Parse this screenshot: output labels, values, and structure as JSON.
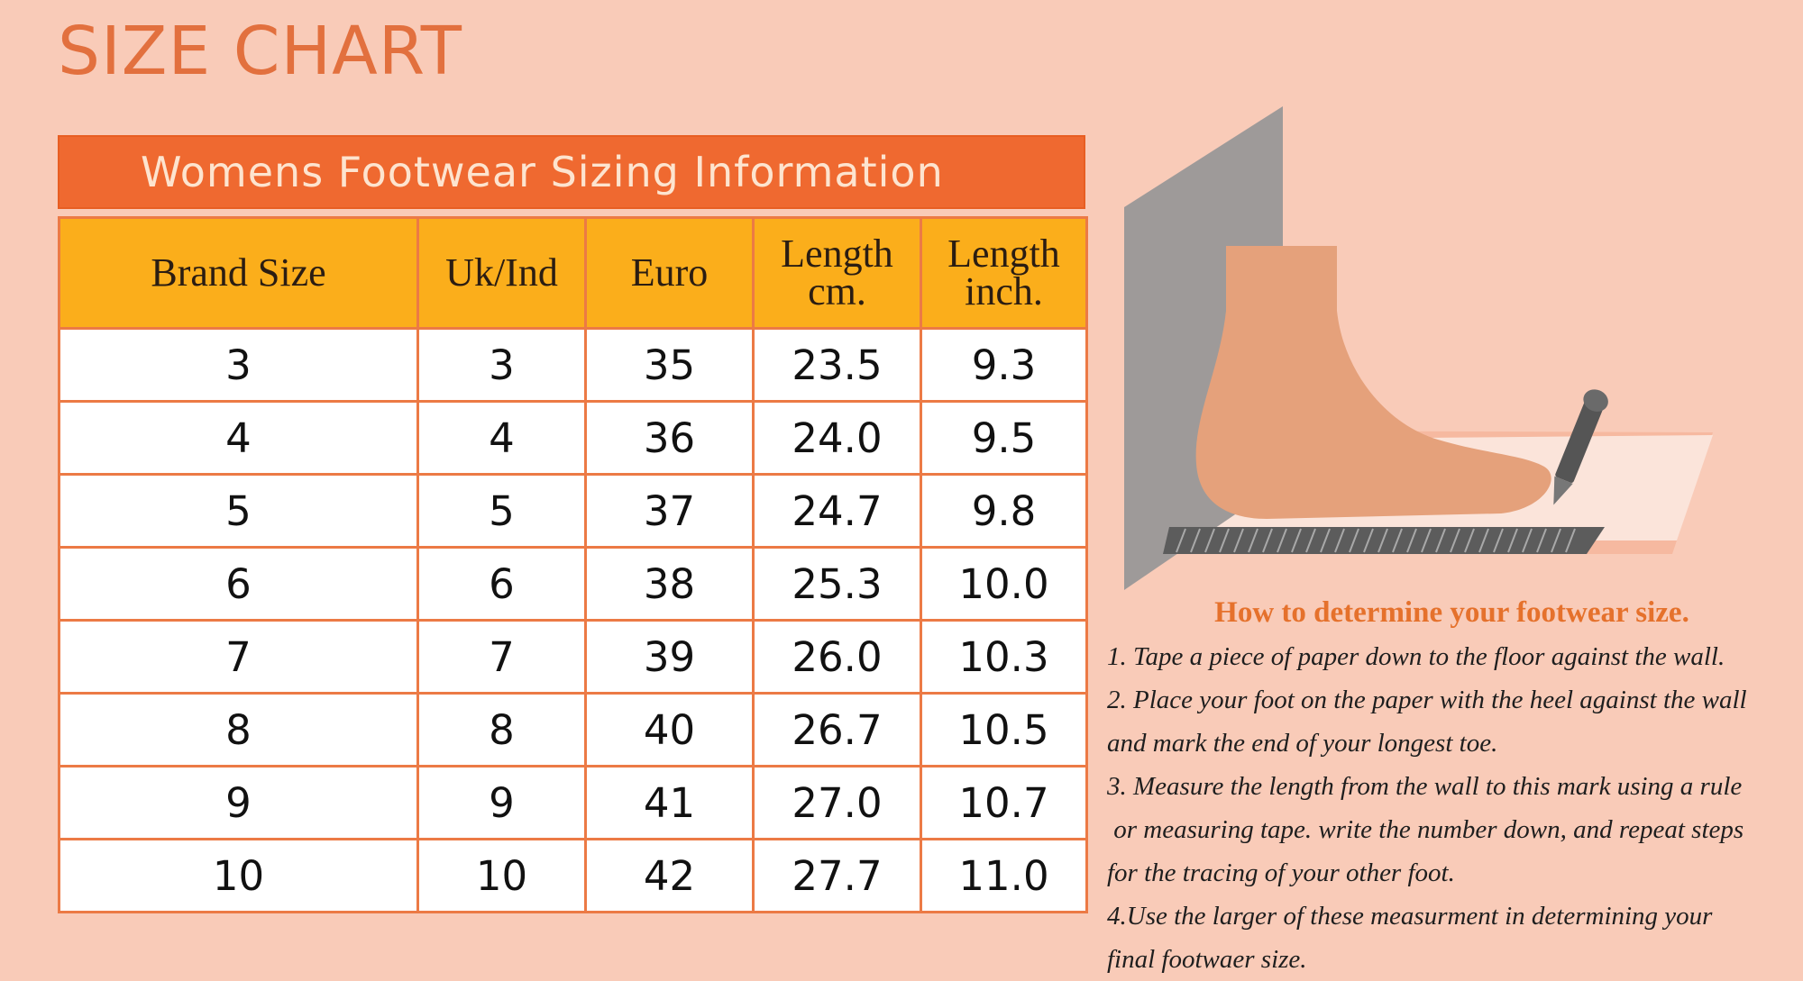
{
  "title": "SIZE CHART",
  "table": {
    "banner": "Womens Footwear Sizing Information",
    "headers": [
      {
        "line1": "Brand Size",
        "line2": ""
      },
      {
        "line1": "Uk/Ind",
        "line2": ""
      },
      {
        "line1": "Euro",
        "line2": ""
      },
      {
        "line1": "Length",
        "line2": "cm."
      },
      {
        "line1": "Length",
        "line2": "inch."
      }
    ],
    "rows": [
      [
        "3",
        "3",
        "35",
        "23.5",
        "9.3"
      ],
      [
        "4",
        "4",
        "36",
        "24.0",
        "9.5"
      ],
      [
        "5",
        "5",
        "37",
        "24.7",
        "9.8"
      ],
      [
        "6",
        "6",
        "38",
        "25.3",
        "10.0"
      ],
      [
        "7",
        "7",
        "39",
        "26.0",
        "10.3"
      ],
      [
        "8",
        "8",
        "40",
        "26.7",
        "10.5"
      ],
      [
        "9",
        "9",
        "41",
        "27.0",
        "10.7"
      ],
      [
        "10",
        "10",
        "42",
        "27.7",
        "11.0"
      ]
    ]
  },
  "howto": {
    "title": "How to determine your footwear size.",
    "lines": [
      "1. Tape a piece of paper down to the floor against the wall.",
      "2. Place your foot on the paper with the heel against the wall",
      "and mark the end of your longest toe.",
      "3. Measure the length from the wall to this mark using a rule",
      " or measuring tape. write the number down, and repeat steps",
      "for the tracing of your other foot.",
      "4.Use the larger of these measurment in determining your",
      "final footwaer size."
    ]
  },
  "colors": {
    "background": "#f9cbb8",
    "accent_orange": "#ef6930",
    "header_yellow": "#fbae1b",
    "title_orange": "#e2703e"
  }
}
